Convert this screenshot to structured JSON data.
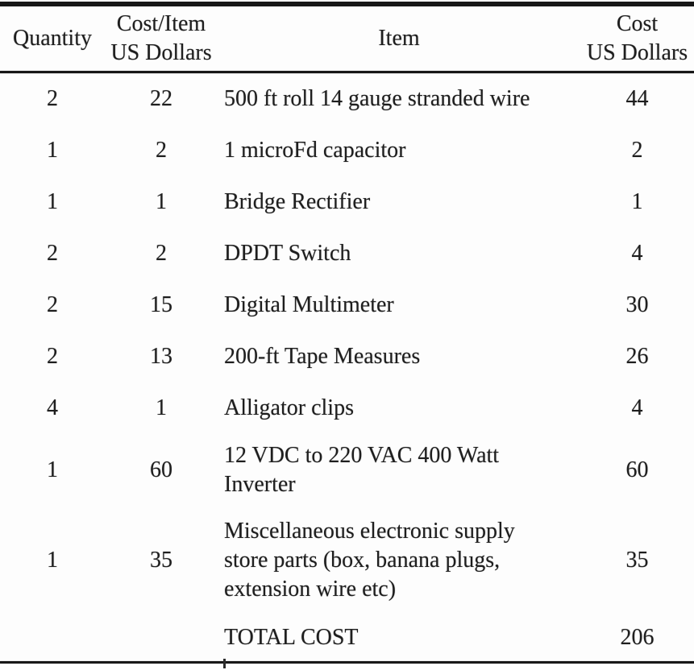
{
  "colors": {
    "ink": "#1e1e1e",
    "paper": "#fdfdfd",
    "rule": "#171717"
  },
  "table": {
    "headers": {
      "quantity": "Quantity",
      "cost_per_item_line1": "Cost/Item",
      "cost_per_item_line2": "US Dollars",
      "item": "Item",
      "cost_line1": "Cost",
      "cost_line2": "US Dollars"
    },
    "rows": [
      {
        "quantity": "2",
        "cost_per_item": "22",
        "item": "500 ft roll 14 gauge stranded wire",
        "cost": "44"
      },
      {
        "quantity": "1",
        "cost_per_item": "2",
        "item": "1 microFd capacitor",
        "cost": "2"
      },
      {
        "quantity": "1",
        "cost_per_item": "1",
        "item": "Bridge Rectifier",
        "cost": "1"
      },
      {
        "quantity": "2",
        "cost_per_item": "2",
        "item": "DPDT Switch",
        "cost": "4"
      },
      {
        "quantity": "2",
        "cost_per_item": "15",
        "item": "Digital Multimeter",
        "cost": "30"
      },
      {
        "quantity": "2",
        "cost_per_item": "13",
        "item": "200-ft Tape Measures",
        "cost": "26"
      },
      {
        "quantity": "4",
        "cost_per_item": "1",
        "item": "Alligator clips",
        "cost": "4"
      },
      {
        "quantity": "1",
        "cost_per_item": "60",
        "item": "12 VDC to 220 VAC 400 Watt Inverter",
        "cost": "60"
      },
      {
        "quantity": "1",
        "cost_per_item": "35",
        "item": "Miscellaneous electronic supply store parts (box, banana plugs, extension wire etc)",
        "cost": "35"
      }
    ],
    "total_row": {
      "label": "TOTAL COST",
      "cost": "206"
    }
  },
  "chart_data": {
    "type": "table",
    "columns": [
      "Quantity",
      "Cost/Item US Dollars",
      "Item",
      "Cost US Dollars"
    ],
    "rows": [
      [
        2,
        22,
        "500 ft roll 14 gauge stranded wire",
        44
      ],
      [
        1,
        2,
        "1 microFd capacitor",
        2
      ],
      [
        1,
        1,
        "Bridge Rectifier",
        1
      ],
      [
        2,
        2,
        "DPDT Switch",
        4
      ],
      [
        2,
        15,
        "Digital Multimeter",
        30
      ],
      [
        2,
        13,
        "200-ft Tape Measures",
        26
      ],
      [
        4,
        1,
        "Alligator clips",
        4
      ],
      [
        1,
        60,
        "12 VDC to 220 VAC 400 Watt Inverter",
        60
      ],
      [
        1,
        35,
        "Miscellaneous electronic supply store parts (box, banana plugs, extension wire etc)",
        35
      ]
    ],
    "total": [
      "",
      "",
      "TOTAL COST",
      206
    ]
  }
}
